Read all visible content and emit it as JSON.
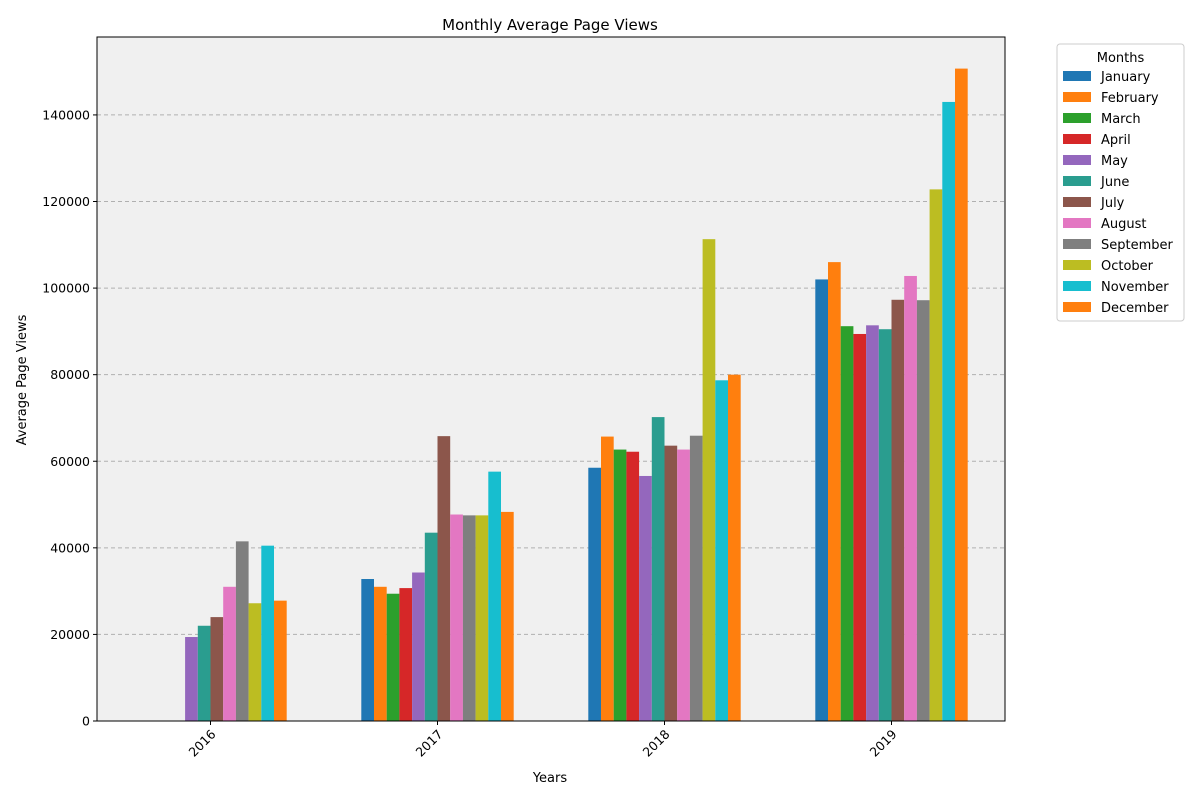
{
  "chart_data": {
    "type": "bar",
    "title": "Monthly Average Page Views",
    "xlabel": "Years",
    "ylabel": "Average Page Views",
    "categories": [
      "2016",
      "2017",
      "2018",
      "2019"
    ],
    "ylim": [
      0,
      158000
    ],
    "yticks": [
      0,
      20000,
      40000,
      60000,
      80000,
      100000,
      120000,
      140000
    ],
    "ytick_labels": [
      "0",
      "20000",
      "40000",
      "60000",
      "80000",
      "100000",
      "120000",
      "140000"
    ],
    "grid": "y-dashed",
    "background": "#f0f0f0",
    "legend_title": "Months",
    "legend_position": "outside-top-right",
    "series": [
      {
        "name": "January",
        "color": "#1f77b4",
        "values": [
          null,
          32800,
          58500,
          102000
        ]
      },
      {
        "name": "February",
        "color": "#ff7f0e",
        "values": [
          null,
          31000,
          65700,
          106000
        ]
      },
      {
        "name": "March",
        "color": "#2ca02c",
        "values": [
          null,
          29400,
          62700,
          91200
        ]
      },
      {
        "name": "April",
        "color": "#d62728",
        "values": [
          null,
          30700,
          62200,
          89400
        ]
      },
      {
        "name": "May",
        "color": "#9467bd",
        "values": [
          19400,
          34300,
          56600,
          91400
        ]
      },
      {
        "name": "June",
        "color": "#2a9d8f",
        "values": [
          22000,
          43500,
          70200,
          90500
        ]
      },
      {
        "name": "July",
        "color": "#8c564b",
        "values": [
          24000,
          65800,
          63600,
          97300
        ]
      },
      {
        "name": "August",
        "color": "#e377c2",
        "values": [
          31000,
          47700,
          62700,
          102800
        ]
      },
      {
        "name": "September",
        "color": "#7f7f7f",
        "values": [
          41500,
          47500,
          65900,
          97200
        ]
      },
      {
        "name": "October",
        "color": "#bcbd22",
        "values": [
          27200,
          47500,
          111300,
          122800
        ]
      },
      {
        "name": "November",
        "color": "#17becf",
        "values": [
          40500,
          57600,
          78700,
          143000
        ]
      },
      {
        "name": "December",
        "color": "#ff7f0e",
        "values": [
          27800,
          48300,
          80000,
          150700
        ]
      }
    ]
  }
}
